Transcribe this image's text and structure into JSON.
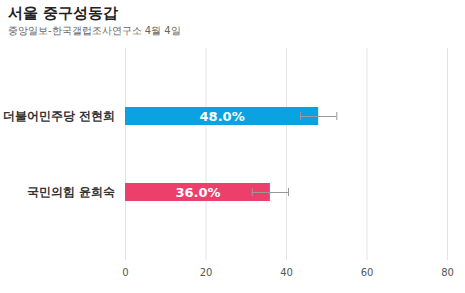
{
  "chart_data": {
    "type": "bar",
    "title": "서울 중구성동갑",
    "subtitle": "중앙일보-한국갤럽조사연구소 4월 4일",
    "orientation": "horizontal",
    "categories": [
      "더불어민주당 전현희",
      "국민의힘 윤희숙"
    ],
    "values": [
      48.0,
      36.0
    ],
    "value_labels": [
      "48.0%",
      "36.0%"
    ],
    "errors": [
      4.5,
      4.5
    ],
    "colors": [
      "#0aa2e0",
      "#ec3f6c"
    ],
    "xlim": [
      0,
      80
    ],
    "xticks": [
      0,
      20,
      40,
      60,
      80
    ],
    "grid": true,
    "data_labels": true
  }
}
